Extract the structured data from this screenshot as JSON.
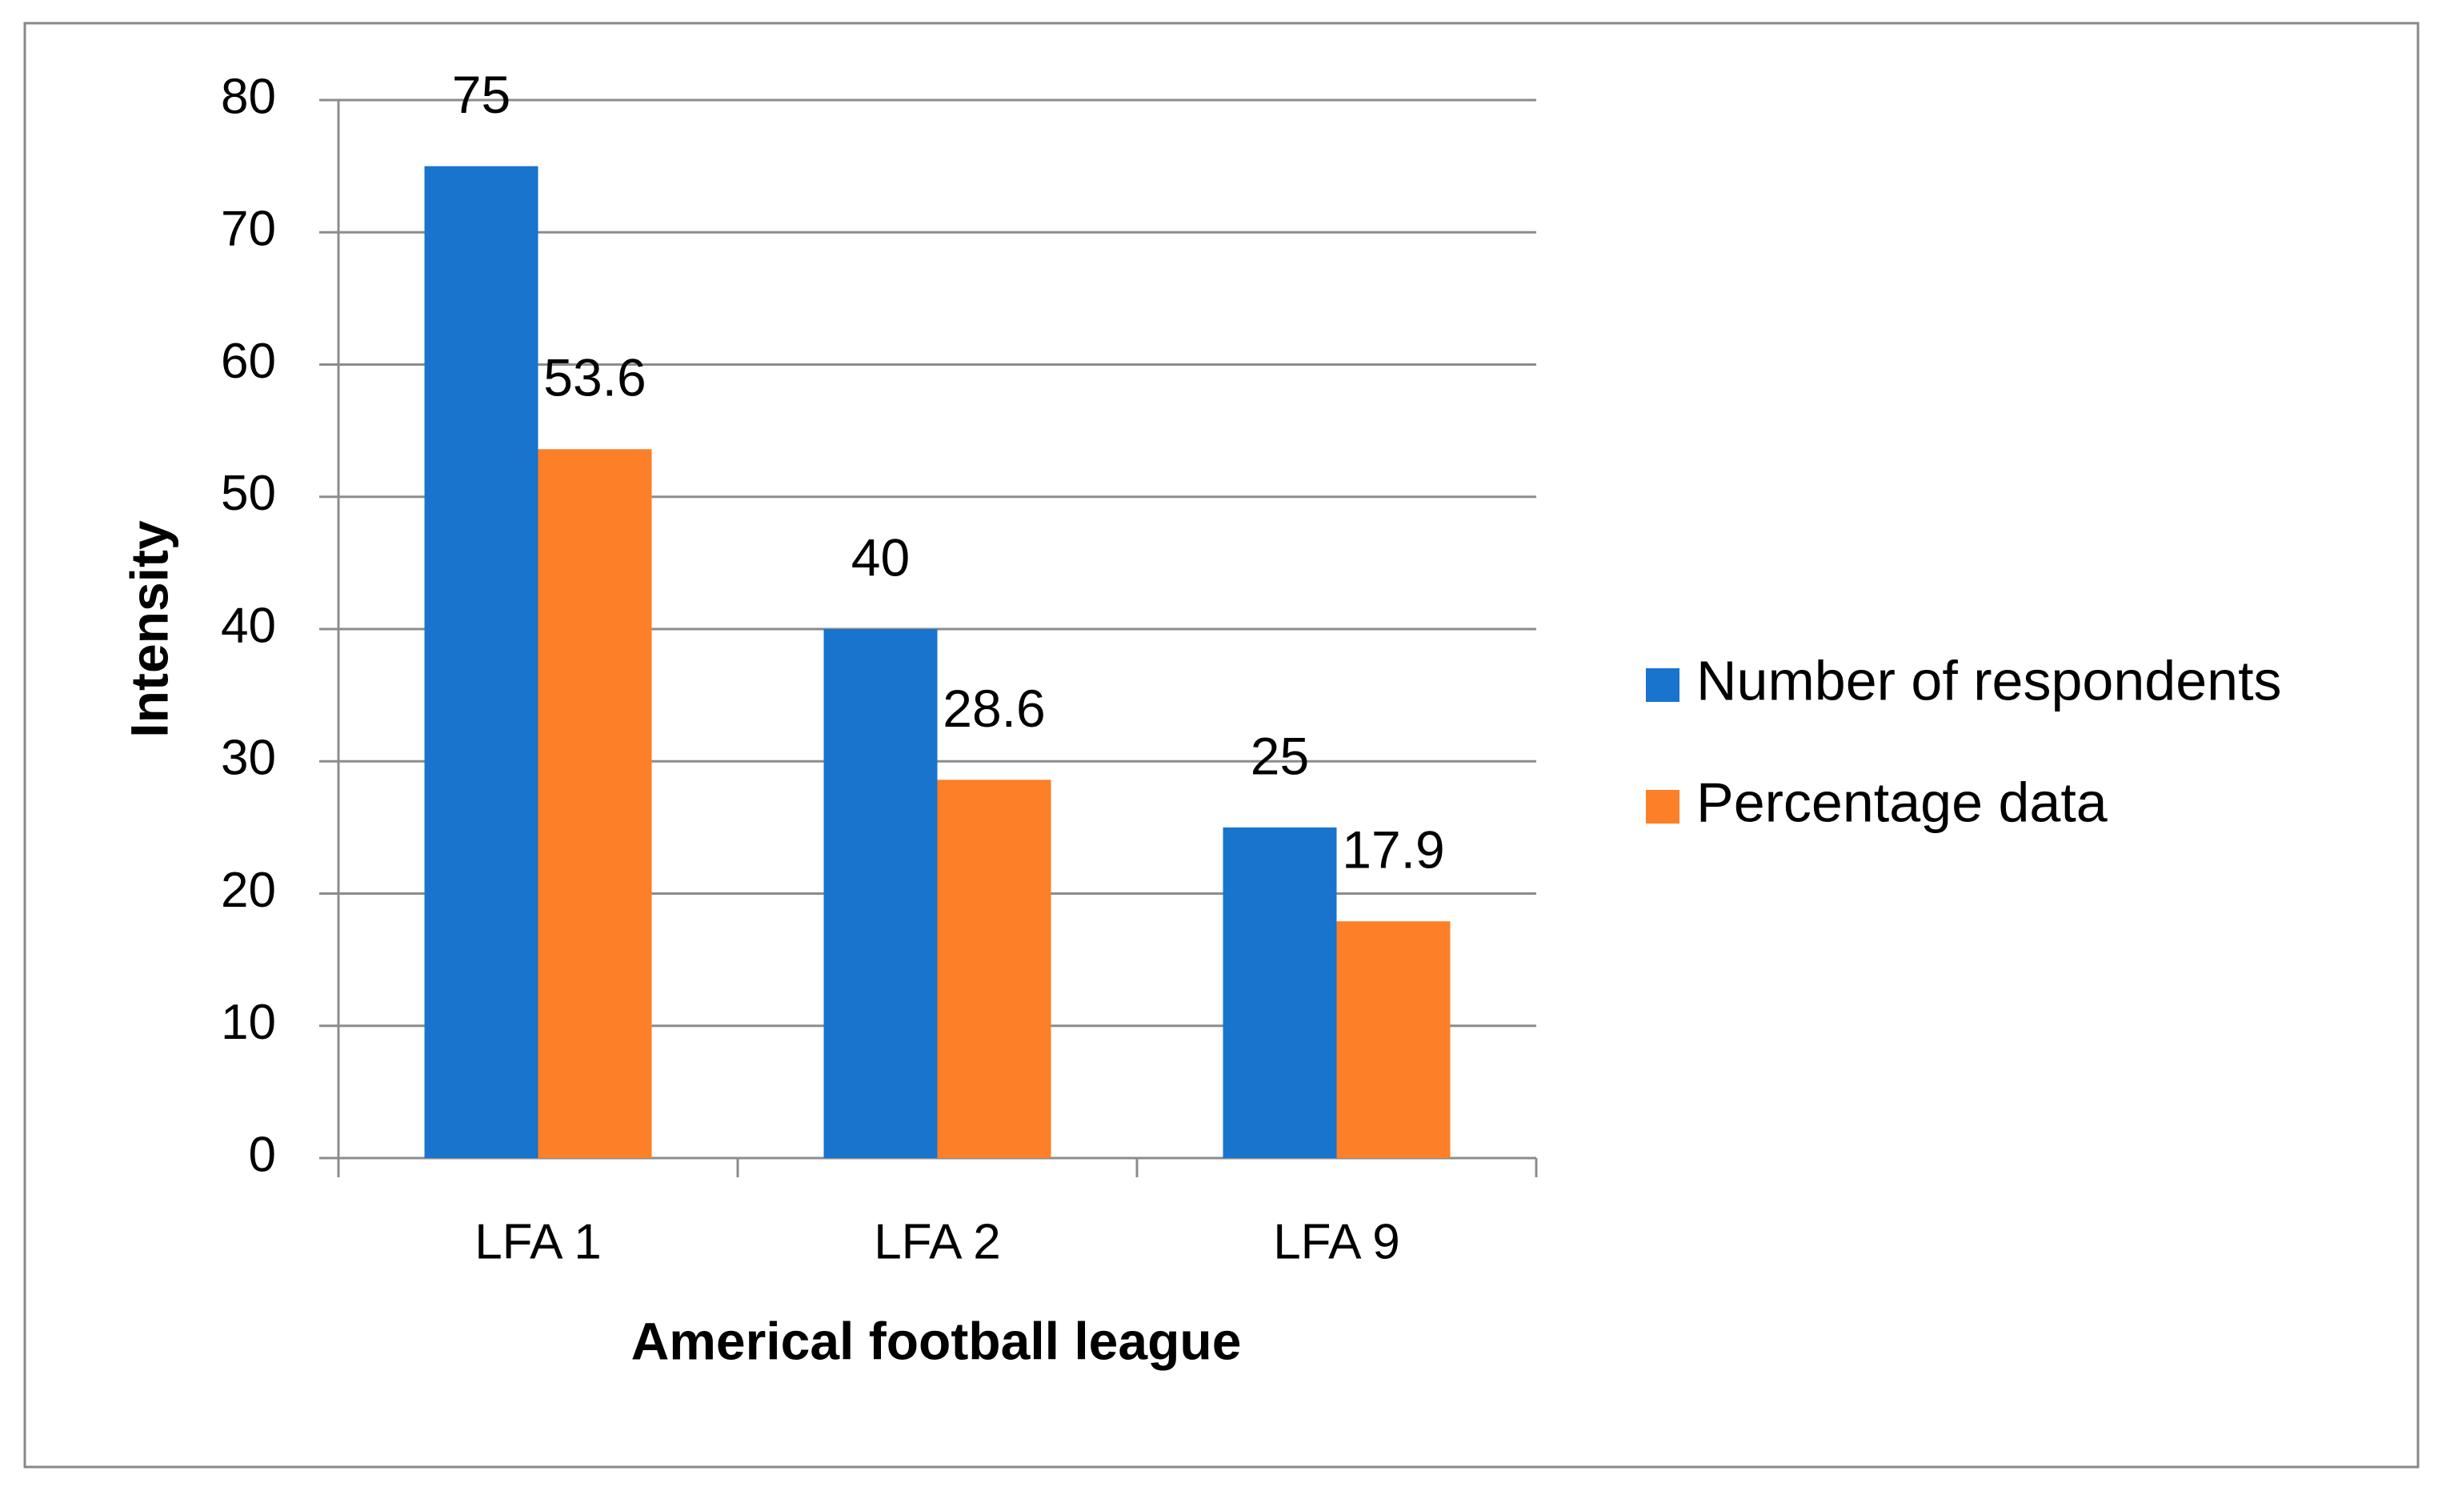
{
  "chart_data": {
    "type": "bar",
    "x_label": "Americal football league",
    "y_label": "Intensity",
    "categories": [
      "LFA 1",
      "LFA 2",
      "LFA 9"
    ],
    "series": [
      {
        "name": "Number of respondents",
        "color": "#1874cd",
        "values": [
          75,
          40,
          25
        ]
      },
      {
        "name": "Percentage data",
        "color": "#fd7f27",
        "values": [
          53.6,
          28.6,
          17.9
        ]
      }
    ],
    "ylim": [
      0,
      80
    ],
    "yticks": [
      0,
      10,
      20,
      30,
      40,
      50,
      60,
      70,
      80
    ],
    "grid": true,
    "legend": "right"
  }
}
